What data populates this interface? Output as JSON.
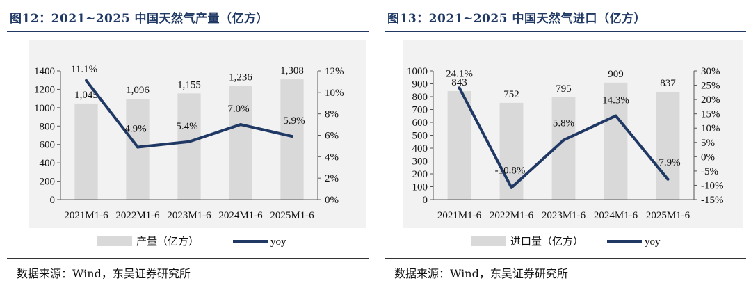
{
  "figures": [
    {
      "title": "图12：2021~2025 中国天然气产量（亿方）",
      "source": "数据来源：Wind，东吴证券研究所"
    },
    {
      "title": "图13：2021~2025 中国天然气进口（亿方）",
      "source": "数据来源：Wind，东吴证券研究所"
    }
  ],
  "chart_data": [
    {
      "type": "bar",
      "categories": [
        "2021M1-6",
        "2022M1-6",
        "2023M1-6",
        "2024M1-6",
        "2025M1-6"
      ],
      "series": [
        {
          "name": "产量（亿方）",
          "type": "bar",
          "axis": "left",
          "values": [
            1045,
            1096,
            1155,
            1236,
            1308
          ],
          "labels": [
            "1,045",
            "1,096",
            "1,155",
            "1,236",
            "1,308"
          ]
        },
        {
          "name": "yoy",
          "type": "line",
          "axis": "right",
          "values": [
            11.1,
            4.9,
            5.4,
            7.0,
            5.9
          ],
          "labels": [
            "11.1%",
            "4.9%",
            "5.4%",
            "7.0%",
            "5.9%"
          ]
        }
      ],
      "ylim_left": [
        0,
        1400
      ],
      "yticks_left": [
        "0",
        "200",
        "400",
        "600",
        "800",
        "1000",
        "1200",
        "1400"
      ],
      "ylim_right": [
        0,
        12
      ],
      "yticks_right": [
        "0%",
        "2%",
        "4%",
        "6%",
        "8%",
        "10%",
        "12%"
      ],
      "legend_position": "bottom",
      "grid": false,
      "colors": {
        "bar": "#d9d9d9",
        "line": "#203864"
      }
    },
    {
      "type": "bar",
      "categories": [
        "2021M1-6",
        "2022M1-6",
        "2023M1-6",
        "2024M1-6",
        "2025M1-6"
      ],
      "series": [
        {
          "name": "进口量（亿方）",
          "type": "bar",
          "axis": "left",
          "values": [
            843,
            752,
            795,
            909,
            837
          ],
          "labels": [
            "843",
            "752",
            "795",
            "909",
            "837"
          ]
        },
        {
          "name": "yoy",
          "type": "line",
          "axis": "right",
          "values": [
            24.1,
            -10.8,
            5.8,
            14.3,
            -7.9
          ],
          "labels": [
            "24.1%",
            "-10.8%",
            "5.8%",
            "14.3%",
            "-7.9%"
          ]
        }
      ],
      "ylim_left": [
        0,
        1000
      ],
      "yticks_left": [
        "0",
        "100",
        "200",
        "300",
        "400",
        "500",
        "600",
        "700",
        "800",
        "900",
        "1000"
      ],
      "ylim_right": [
        -15,
        30
      ],
      "yticks_right": [
        "-15%",
        "-10%",
        "-5%",
        "0%",
        "5%",
        "10%",
        "15%",
        "20%",
        "25%",
        "30%"
      ],
      "legend_position": "bottom",
      "grid": false,
      "colors": {
        "bar": "#d9d9d9",
        "line": "#203864"
      }
    }
  ]
}
